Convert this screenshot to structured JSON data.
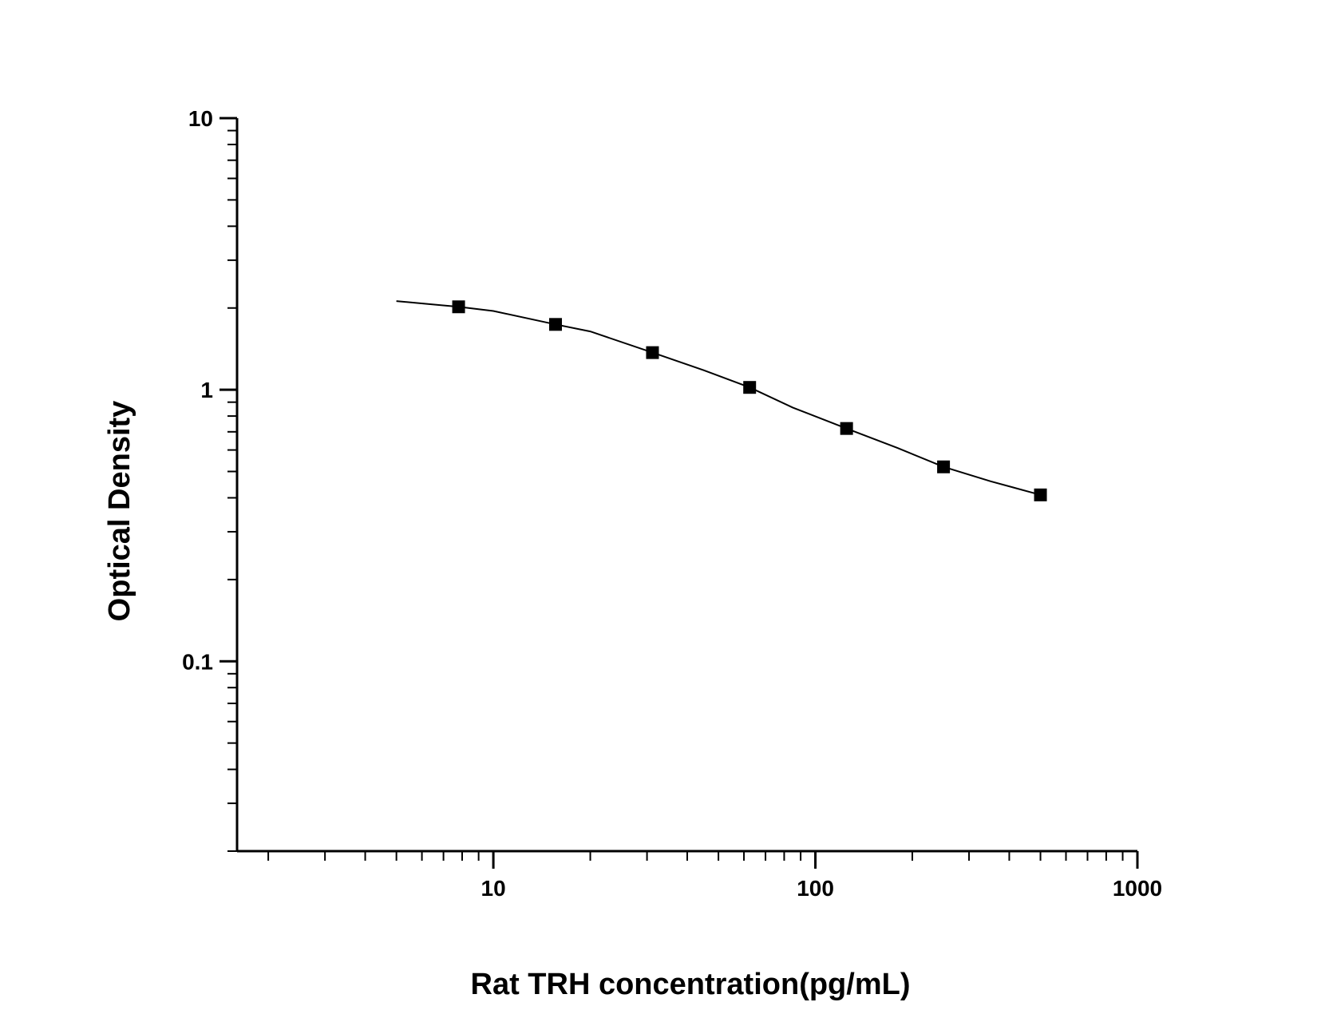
{
  "chart_data": {
    "type": "scatter",
    "xlabel": "Rat TRH concentration(pg/mL)",
    "ylabel": "Optical Density",
    "x_scale": "log",
    "y_scale": "log",
    "xlim": [
      1.6,
      1000
    ],
    "ylim": [
      0.02,
      10
    ],
    "x_ticks": [
      {
        "value": 10,
        "label": "10"
      },
      {
        "value": 100,
        "label": "100"
      },
      {
        "value": 1000,
        "label": "1000"
      }
    ],
    "y_ticks": [
      {
        "value": 0.1,
        "label": "0.1"
      },
      {
        "value": 1,
        "label": "1"
      },
      {
        "value": 10,
        "label": "10"
      }
    ],
    "grid": false,
    "marker": "square",
    "color": "#000000",
    "series": [
      {
        "x": [
          7.8,
          15.6,
          31.2,
          62.5,
          125,
          250,
          500
        ],
        "y": [
          2.02,
          1.74,
          1.37,
          1.02,
          0.72,
          0.52,
          0.41
        ]
      }
    ],
    "fit_curve": {
      "x": [
        5,
        7.8,
        10,
        15.6,
        20,
        31.2,
        45,
        62.5,
        85,
        125,
        180,
        250,
        350,
        500
      ],
      "y": [
        2.12,
        2.02,
        1.95,
        1.74,
        1.64,
        1.37,
        1.18,
        1.02,
        0.86,
        0.72,
        0.61,
        0.52,
        0.46,
        0.41
      ]
    }
  }
}
